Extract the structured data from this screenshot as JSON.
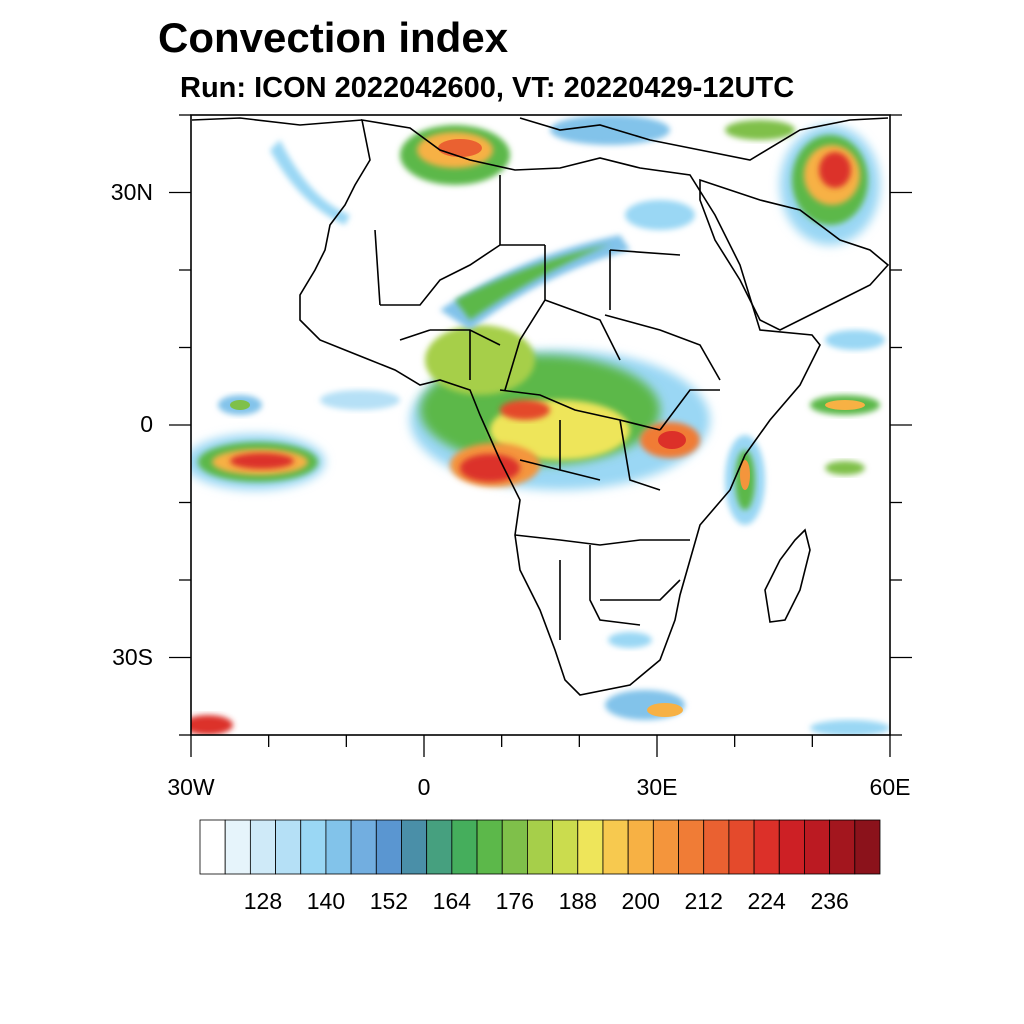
{
  "header": {
    "title": "Convection index",
    "subtitle": "Run: ICON 2022042600,  VT: 20220429-12UTC"
  },
  "map": {
    "projection": "cylindrical-equidistant",
    "lon_range": [
      -30,
      60
    ],
    "lat_range": [
      -40,
      40
    ],
    "lon_labels": [
      {
        "value": -30,
        "text": "30W"
      },
      {
        "value": 0,
        "text": "0"
      },
      {
        "value": 30,
        "text": "30E"
      },
      {
        "value": 60,
        "text": "60E"
      }
    ],
    "lat_labels": [
      {
        "value": 30,
        "text": "30N"
      },
      {
        "value": 0,
        "text": "0"
      },
      {
        "value": -30,
        "text": "30S"
      }
    ]
  },
  "colorbar": {
    "tick_labels": [
      "128",
      "140",
      "152",
      "164",
      "176",
      "188",
      "200",
      "212",
      "224",
      "236"
    ],
    "colors": [
      "#ffffff",
      "#e6f4fb",
      "#cfeaf8",
      "#b5e0f6",
      "#9ad7f4",
      "#82c3ea",
      "#72aee0",
      "#5a96d1",
      "#4a8fa8",
      "#46a07f",
      "#45ae5c",
      "#5cb84a",
      "#7fc04a",
      "#a6cf4a",
      "#cbdc4e",
      "#eee55a",
      "#f7c94f",
      "#f7b144",
      "#f4953c",
      "#f07c36",
      "#ea6131",
      "#e44a2c",
      "#dc3029",
      "#cd2025",
      "#bb1a22",
      "#a3161e",
      "#8b121b"
    ]
  },
  "legend_colors": {
    "low": "#9ad7f4",
    "mid": "#5cb84a",
    "high": "#f7b144",
    "extreme": "#dc3029"
  }
}
